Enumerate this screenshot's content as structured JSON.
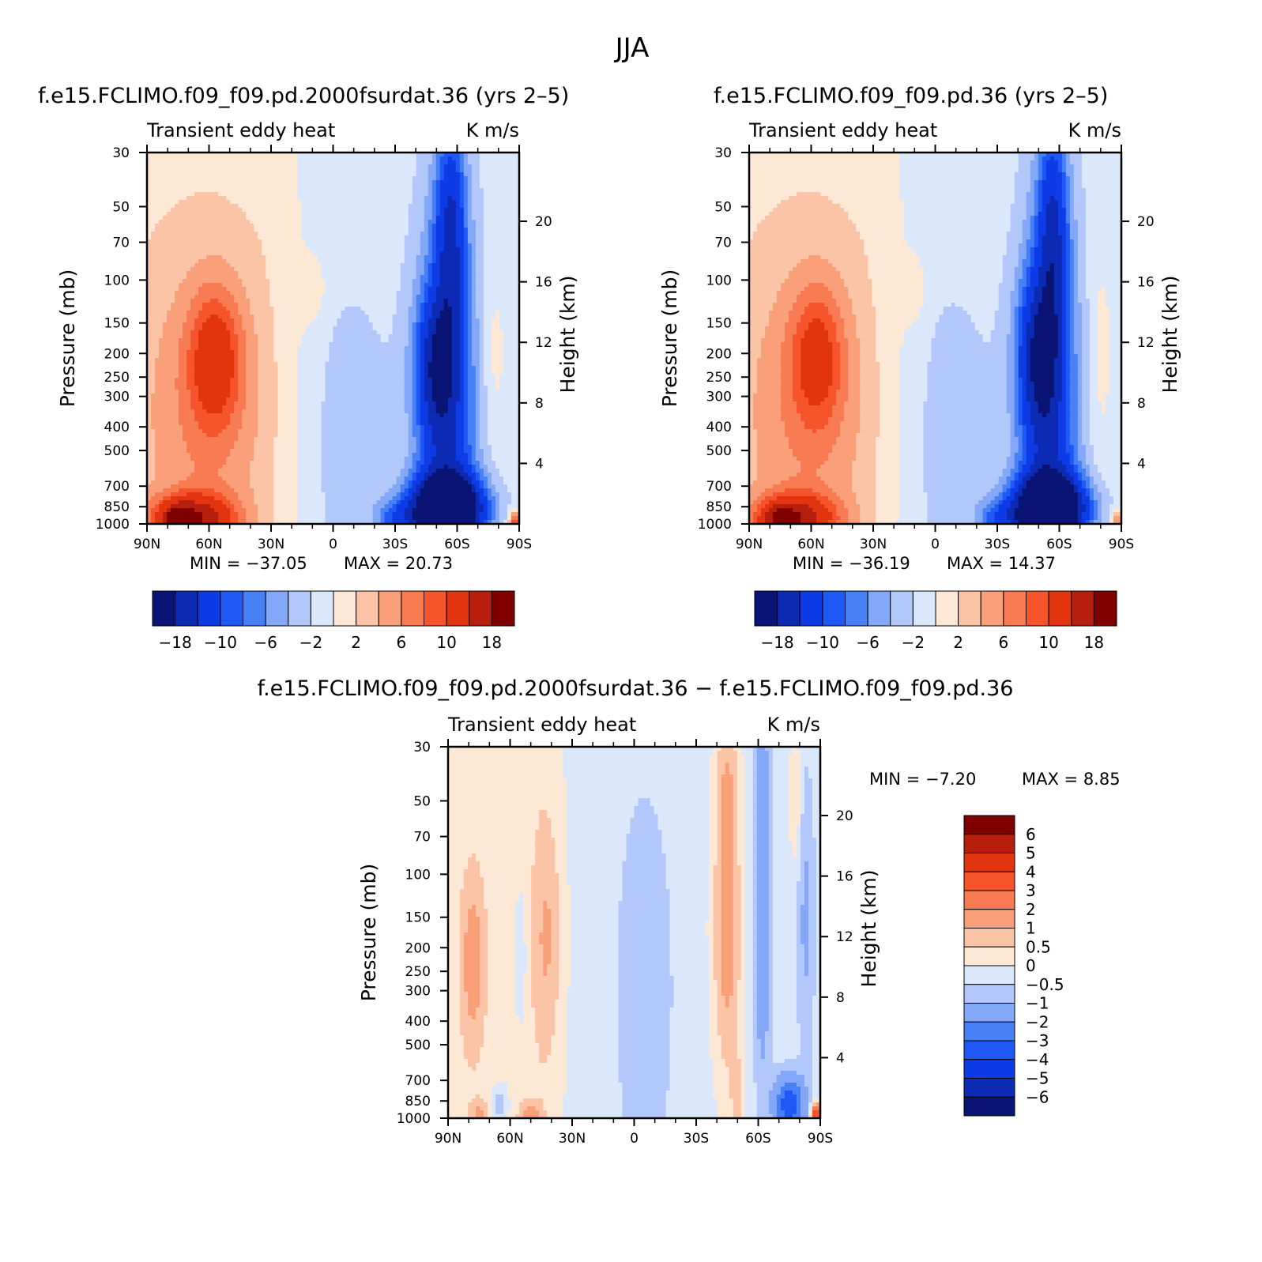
{
  "figure_title": "JJA",
  "chart_data": [
    {
      "type": "heatmap",
      "id": "panel-1",
      "title": "f.e15.FCLIMO.f09_f09.pd.2000fsurdat.36 (yrs 2–5)",
      "left_label": "Transient eddy heat",
      "right_label": "K m/s",
      "xlabel": "",
      "ylabel": "Pressure (mb)",
      "y2label": "Height (km)",
      "x_tick_labels": [
        "90N",
        "60N",
        "30N",
        "0",
        "30S",
        "60S",
        "90S"
      ],
      "x_range": [
        90,
        -90
      ],
      "y_scale": "log",
      "y_range": [
        1000,
        30
      ],
      "y_tick_values": [
        30,
        50,
        70,
        100,
        150,
        200,
        250,
        300,
        400,
        500,
        700,
        850,
        1000
      ],
      "y2_tick_values": [
        4,
        8,
        12,
        16,
        20
      ],
      "min_label": "MIN = −37.05",
      "max_label": "MAX = 20.73",
      "colorbar_orientation": "horizontal",
      "colorbar_tick_labels": [
        "−18",
        "−10",
        "−6",
        "−2",
        "2",
        "6",
        "10",
        "18"
      ],
      "colorbar_colors": [
        "#0a1475",
        "#0c2ab4",
        "#0d3ce6",
        "#1e58f5",
        "#4880f5",
        "#84a7f8",
        "#b2c8fa",
        "#dbe8fb",
        "#fde8d6",
        "#fbc4a7",
        "#f9a07b",
        "#f87b52",
        "#f6552c",
        "#e33410",
        "#b61f0d",
        "#800000"
      ],
      "features": [
        {
          "lat": 62,
          "p": 350,
          "value": 5,
          "lat_sigma": 25,
          "logp_sigma": 0.5
        },
        {
          "lat": 57,
          "p": 210,
          "value": 8,
          "lat_sigma": 9,
          "logp_sigma": 0.2
        },
        {
          "lat": 68,
          "p": 950,
          "value": 14,
          "lat_sigma": 14,
          "logp_sigma": 0.07
        },
        {
          "lat": 75,
          "p": 960,
          "value": 8,
          "lat_sigma": 5,
          "logp_sigma": 0.04
        },
        {
          "lat": 10,
          "p": 110,
          "value": 2,
          "lat_sigma": 6,
          "logp_sigma": 0.1
        },
        {
          "lat": -55,
          "p": 500,
          "value": -12,
          "lat_sigma": 10,
          "logp_sigma": 0.7
        },
        {
          "lat": -57,
          "p": 60,
          "value": -10,
          "lat_sigma": 5,
          "logp_sigma": 0.3
        },
        {
          "lat": -50,
          "p": 220,
          "value": -10,
          "lat_sigma": 7,
          "logp_sigma": 0.2
        },
        {
          "lat": -55,
          "p": 870,
          "value": -28,
          "lat_sigma": 12,
          "logp_sigma": 0.09
        },
        {
          "lat": -30,
          "p": 950,
          "value": -6,
          "lat_sigma": 7,
          "logp_sigma": 0.05
        },
        {
          "lat": -78,
          "p": 200,
          "value": 2,
          "lat_sigma": 4,
          "logp_sigma": 0.25
        },
        {
          "lat": -5,
          "p": 450,
          "value": -2,
          "lat_sigma": 20,
          "logp_sigma": 0.5
        },
        {
          "lat": -88,
          "p": 980,
          "value": 12,
          "lat_sigma": 2,
          "logp_sigma": 0.03
        }
      ],
      "background": {
        "lat_lo": 35,
        "lat_hi": -1,
        "value_north": 1,
        "value_south": -1
      }
    },
    {
      "type": "heatmap",
      "id": "panel-2",
      "title": "f.e15.FCLIMO.f09_f09.pd.36 (yrs 2–5)",
      "left_label": "Transient eddy heat",
      "right_label": "K m/s",
      "xlabel": "",
      "ylabel": "Pressure (mb)",
      "y2label": "Height (km)",
      "x_tick_labels": [
        "90N",
        "60N",
        "30N",
        "0",
        "30S",
        "60S",
        "90S"
      ],
      "x_range": [
        90,
        -90
      ],
      "y_scale": "log",
      "y_range": [
        1000,
        30
      ],
      "y_tick_values": [
        30,
        50,
        70,
        100,
        150,
        200,
        250,
        300,
        400,
        500,
        700,
        850,
        1000
      ],
      "y2_tick_values": [
        4,
        8,
        12,
        16,
        20
      ],
      "min_label": "MIN = −36.19",
      "max_label": "MAX = 14.37",
      "colorbar_orientation": "horizontal",
      "colorbar_tick_labels": [
        "−18",
        "−10",
        "−6",
        "−2",
        "2",
        "6",
        "10",
        "18"
      ],
      "colorbar_colors": [
        "#0a1475",
        "#0c2ab4",
        "#0d3ce6",
        "#1e58f5",
        "#4880f5",
        "#84a7f8",
        "#b2c8fa",
        "#dbe8fb",
        "#fde8d6",
        "#fbc4a7",
        "#f9a07b",
        "#f87b52",
        "#f6552c",
        "#e33410",
        "#b61f0d",
        "#800000"
      ],
      "features": [
        {
          "lat": 62,
          "p": 350,
          "value": 5,
          "lat_sigma": 25,
          "logp_sigma": 0.5
        },
        {
          "lat": 57,
          "p": 205,
          "value": 7,
          "lat_sigma": 9,
          "logp_sigma": 0.2
        },
        {
          "lat": 68,
          "p": 950,
          "value": 13,
          "lat_sigma": 14,
          "logp_sigma": 0.07
        },
        {
          "lat": 75,
          "p": 960,
          "value": 7,
          "lat_sigma": 5,
          "logp_sigma": 0.04
        },
        {
          "lat": 10,
          "p": 110,
          "value": 2,
          "lat_sigma": 5,
          "logp_sigma": 0.1
        },
        {
          "lat": -55,
          "p": 500,
          "value": -12,
          "lat_sigma": 10,
          "logp_sigma": 0.7
        },
        {
          "lat": -57,
          "p": 60,
          "value": -10,
          "lat_sigma": 5,
          "logp_sigma": 0.3
        },
        {
          "lat": -50,
          "p": 200,
          "value": -11,
          "lat_sigma": 7,
          "logp_sigma": 0.22
        },
        {
          "lat": -55,
          "p": 870,
          "value": -28,
          "lat_sigma": 12,
          "logp_sigma": 0.09
        },
        {
          "lat": -30,
          "p": 950,
          "value": -6,
          "lat_sigma": 7,
          "logp_sigma": 0.05
        },
        {
          "lat": -80,
          "p": 200,
          "value": 2,
          "lat_sigma": 4,
          "logp_sigma": 0.3
        },
        {
          "lat": -5,
          "p": 450,
          "value": -2,
          "lat_sigma": 20,
          "logp_sigma": 0.5
        },
        {
          "lat": -88,
          "p": 980,
          "value": 8,
          "lat_sigma": 2,
          "logp_sigma": 0.03
        }
      ],
      "background": {
        "lat_lo": 35,
        "lat_hi": -1,
        "value_north": 1,
        "value_south": -1
      }
    },
    {
      "type": "heatmap",
      "id": "panel-diff",
      "title": "f.e15.FCLIMO.f09_f09.pd.2000fsurdat.36 − f.e15.FCLIMO.f09_f09.pd.36",
      "left_label": "Transient eddy heat",
      "right_label": "K m/s",
      "xlabel": "",
      "ylabel": "Pressure (mb)",
      "y2label": "Height (km)",
      "x_tick_labels": [
        "90N",
        "60N",
        "30N",
        "0",
        "30S",
        "60S",
        "90S"
      ],
      "x_range": [
        90,
        -90
      ],
      "y_scale": "log",
      "y_range": [
        1000,
        30
      ],
      "y_tick_values": [
        30,
        50,
        70,
        100,
        150,
        200,
        250,
        300,
        400,
        500,
        700,
        850,
        1000
      ],
      "y2_tick_values": [
        4,
        8,
        12,
        16,
        20
      ],
      "min_label": "MIN = −7.20",
      "max_label": "MAX = 8.85",
      "colorbar_orientation": "vertical",
      "colorbar_tick_labels": [
        "6",
        "5",
        "4",
        "3",
        "2",
        "1",
        "0.5",
        "0",
        "−0.5",
        "−1",
        "−2",
        "−3",
        "−4",
        "−5",
        "−6"
      ],
      "colorbar_colors": [
        "#800000",
        "#b61f0d",
        "#e33410",
        "#f6552c",
        "#f87b52",
        "#f9a07b",
        "#fbc4a7",
        "#fde8d6",
        "#dbe8fb",
        "#b2c8fa",
        "#84a7f8",
        "#4880f5",
        "#1e58f5",
        "#0d3ce6",
        "#0c2ab4",
        "#0a1475"
      ],
      "features": [
        {
          "lat": 78,
          "p": 230,
          "value": 1.2,
          "lat_sigma": 4,
          "logp_sigma": 0.25
        },
        {
          "lat": 42,
          "p": 180,
          "value": 0.9,
          "lat_sigma": 5,
          "logp_sigma": 0.35
        },
        {
          "lat": -5,
          "p": 300,
          "value": -0.6,
          "lat_sigma": 10,
          "logp_sigma": 0.6
        },
        {
          "lat": -45,
          "p": 170,
          "value": 1.6,
          "lat_sigma": 5,
          "logp_sigma": 0.45
        },
        {
          "lat": -45,
          "p": 40,
          "value": 0.8,
          "lat_sigma": 4,
          "logp_sigma": 0.2
        },
        {
          "lat": -62,
          "p": 200,
          "value": -1.4,
          "lat_sigma": 3,
          "logp_sigma": 0.4
        },
        {
          "lat": -62,
          "p": 40,
          "value": -1.2,
          "lat_sigma": 2.5,
          "logp_sigma": 0.15
        },
        {
          "lat": -83,
          "p": 150,
          "value": -0.9,
          "lat_sigma": 3,
          "logp_sigma": 0.4
        },
        {
          "lat": -78,
          "p": 50,
          "value": 0.8,
          "lat_sigma": 2,
          "logp_sigma": 0.2
        },
        {
          "lat": -75,
          "p": 880,
          "value": -3.5,
          "lat_sigma": 5,
          "logp_sigma": 0.08
        },
        {
          "lat": -88,
          "p": 970,
          "value": 5,
          "lat_sigma": 1.5,
          "logp_sigma": 0.03
        },
        {
          "lat": 65,
          "p": 880,
          "value": -1,
          "lat_sigma": 3,
          "logp_sigma": 0.06
        },
        {
          "lat": 55,
          "p": 220,
          "value": -0.7,
          "lat_sigma": 2,
          "logp_sigma": 0.2
        },
        {
          "lat": -50,
          "p": 800,
          "value": 1,
          "lat_sigma": 2,
          "logp_sigma": 0.1
        },
        {
          "lat": 50,
          "p": 970,
          "value": 1,
          "lat_sigma": 4,
          "logp_sigma": 0.04
        },
        {
          "lat": 75,
          "p": 970,
          "value": 1,
          "lat_sigma": 3,
          "logp_sigma": 0.04
        }
      ],
      "background": {
        "lat_lo": 45,
        "lat_hi": 25,
        "value_north": 0.25,
        "value_south": -0.25
      }
    }
  ]
}
